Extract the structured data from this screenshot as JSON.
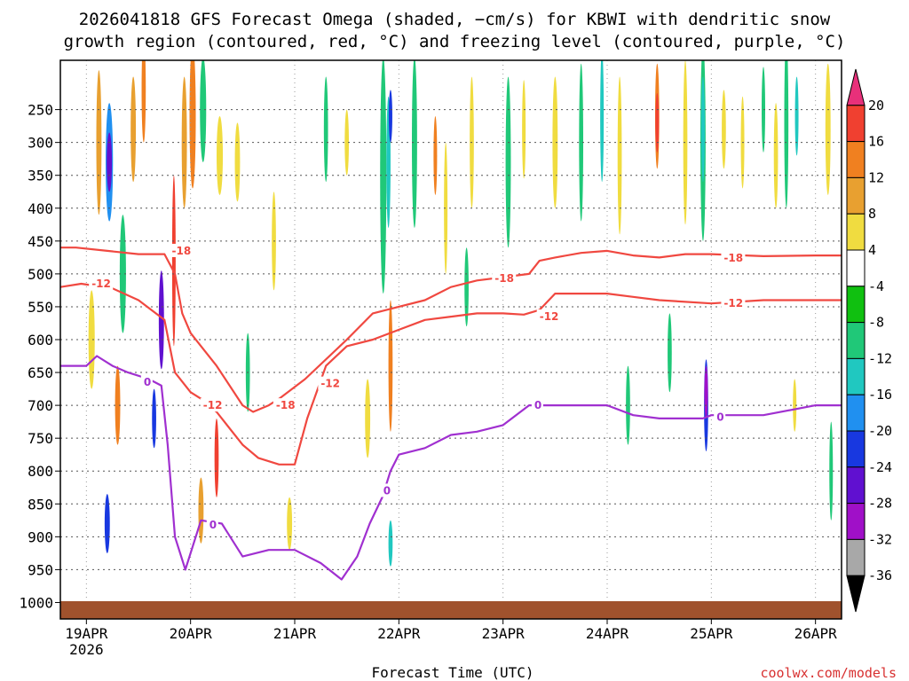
{
  "chart_data": {
    "type": "heatmap",
    "title_line1": "2026041818 GFS Forecast Omega (shaded, −cm/s) for KBWI with dendritic snow",
    "title_line2": "growth region (contoured, red, °C) and freezing level (contoured, purple, °C)",
    "xlabel": "Forecast Time (UTC)",
    "ylabel": "",
    "credit": "coolwx.com/models",
    "x_range_days": [
      18.75,
      26.25
    ],
    "y_range_hpa": [
      1025,
      175
    ],
    "x_ticks": [
      {
        "day": 19,
        "label": "19APR",
        "sub": "2026"
      },
      {
        "day": 20,
        "label": "20APR",
        "sub": ""
      },
      {
        "day": 21,
        "label": "21APR",
        "sub": ""
      },
      {
        "day": 22,
        "label": "22APR",
        "sub": ""
      },
      {
        "day": 23,
        "label": "23APR",
        "sub": ""
      },
      {
        "day": 24,
        "label": "24APR",
        "sub": ""
      },
      {
        "day": 25,
        "label": "25APR",
        "sub": ""
      },
      {
        "day": 26,
        "label": "26APR",
        "sub": ""
      }
    ],
    "y_ticks": [
      {
        "p": 250,
        "label": "250"
      },
      {
        "p": 300,
        "label": "300"
      },
      {
        "p": 350,
        "label": "350"
      },
      {
        "p": 400,
        "label": "400"
      },
      {
        "p": 450,
        "label": "450"
      },
      {
        "p": 500,
        "label": "500"
      },
      {
        "p": 550,
        "label": "550"
      },
      {
        "p": 600,
        "label": "600"
      },
      {
        "p": 650,
        "label": "650"
      },
      {
        "p": 700,
        "label": "700"
      },
      {
        "p": 750,
        "label": "750"
      },
      {
        "p": 800,
        "label": "800"
      },
      {
        "p": 850,
        "label": "850"
      },
      {
        "p": 900,
        "label": "900"
      },
      {
        "p": 950,
        "label": "950"
      },
      {
        "p": 1000,
        "label": "1000"
      }
    ],
    "colorbar": {
      "bands": [
        {
          "lo": 20,
          "hi": 99,
          "color": "#e8307a"
        },
        {
          "lo": 16,
          "hi": 20,
          "color": "#f04030"
        },
        {
          "lo": 12,
          "hi": 16,
          "color": "#f08020"
        },
        {
          "lo": 8,
          "hi": 12,
          "color": "#e8a030"
        },
        {
          "lo": 4,
          "hi": 8,
          "color": "#f0dc40"
        },
        {
          "lo": -4,
          "hi": 4,
          "color": "#ffffff"
        },
        {
          "lo": -8,
          "hi": -4,
          "color": "#10c010"
        },
        {
          "lo": -12,
          "hi": -8,
          "color": "#20c878"
        },
        {
          "lo": -16,
          "hi": -12,
          "color": "#20c8c0"
        },
        {
          "lo": -20,
          "hi": -16,
          "color": "#2090f0"
        },
        {
          "lo": -24,
          "hi": -20,
          "color": "#1838e0"
        },
        {
          "lo": -28,
          "hi": -24,
          "color": "#6010d0"
        },
        {
          "lo": -32,
          "hi": -28,
          "color": "#a010c8"
        },
        {
          "lo": -36,
          "hi": -32,
          "color": "#a8a8a8"
        },
        {
          "lo": -99,
          "hi": -36,
          "color": "#000000"
        }
      ],
      "tick_labels": [
        "20",
        "16",
        "12",
        "8",
        "4",
        "-4",
        "-8",
        "-12",
        "-16",
        "-20",
        "-24",
        "-28",
        "-32",
        "-36"
      ]
    },
    "omega_patches": [
      {
        "day": 19.22,
        "p": 330,
        "wd": 0.07,
        "hp": 180,
        "value": -20
      },
      {
        "day": 19.22,
        "p": 330,
        "wd": 0.05,
        "hp": 90,
        "value": -26
      },
      {
        "day": 19.12,
        "p": 300,
        "wd": 0.05,
        "hp": 220,
        "value": 10
      },
      {
        "day": 19.45,
        "p": 280,
        "wd": 0.05,
        "hp": 160,
        "value": 10
      },
      {
        "day": 19.35,
        "p": 500,
        "wd": 0.06,
        "hp": 180,
        "value": -10
      },
      {
        "day": 19.05,
        "p": 600,
        "wd": 0.06,
        "hp": 150,
        "value": 6
      },
      {
        "day": 19.3,
        "p": 700,
        "wd": 0.05,
        "hp": 120,
        "value": 14
      },
      {
        "day": 19.2,
        "p": 880,
        "wd": 0.05,
        "hp": 90,
        "value": -22
      },
      {
        "day": 19.55,
        "p": 220,
        "wd": 0.04,
        "hp": 160,
        "value": 14
      },
      {
        "day": 19.72,
        "p": 560,
        "wd": 0.03,
        "hp": 110,
        "value": -40
      },
      {
        "day": 19.72,
        "p": 570,
        "wd": 0.05,
        "hp": 150,
        "value": -26
      },
      {
        "day": 19.65,
        "p": 720,
        "wd": 0.04,
        "hp": 90,
        "value": -24
      },
      {
        "day": 19.84,
        "p": 480,
        "wd": 0.03,
        "hp": 260,
        "value": 18
      },
      {
        "day": 19.94,
        "p": 300,
        "wd": 0.05,
        "hp": 200,
        "value": 8
      },
      {
        "day": 20.02,
        "p": 260,
        "wd": 0.06,
        "hp": 220,
        "value": 12
      },
      {
        "day": 20.12,
        "p": 250,
        "wd": 0.06,
        "hp": 160,
        "value": -10
      },
      {
        "day": 20.28,
        "p": 320,
        "wd": 0.06,
        "hp": 120,
        "value": 6
      },
      {
        "day": 20.25,
        "p": 780,
        "wd": 0.04,
        "hp": 120,
        "value": 16
      },
      {
        "day": 20.1,
        "p": 860,
        "wd": 0.05,
        "hp": 100,
        "value": 10
      },
      {
        "day": 20.45,
        "p": 330,
        "wd": 0.05,
        "hp": 120,
        "value": 6
      },
      {
        "day": 20.55,
        "p": 650,
        "wd": 0.04,
        "hp": 120,
        "value": -10
      },
      {
        "day": 20.8,
        "p": 450,
        "wd": 0.04,
        "hp": 150,
        "value": 6
      },
      {
        "day": 20.95,
        "p": 880,
        "wd": 0.05,
        "hp": 80,
        "value": 6
      },
      {
        "day": 21.3,
        "p": 280,
        "wd": 0.04,
        "hp": 160,
        "value": -10
      },
      {
        "day": 21.5,
        "p": 300,
        "wd": 0.04,
        "hp": 100,
        "value": 6
      },
      {
        "day": 21.85,
        "p": 350,
        "wd": 0.06,
        "hp": 360,
        "value": -10
      },
      {
        "day": 21.9,
        "p": 330,
        "wd": 0.04,
        "hp": 200,
        "value": -16
      },
      {
        "day": 21.92,
        "p": 260,
        "wd": 0.03,
        "hp": 80,
        "value": -22
      },
      {
        "day": 21.92,
        "p": 640,
        "wd": 0.04,
        "hp": 200,
        "value": 12
      },
      {
        "day": 21.7,
        "p": 720,
        "wd": 0.05,
        "hp": 120,
        "value": 6
      },
      {
        "day": 21.92,
        "p": 910,
        "wd": 0.04,
        "hp": 70,
        "value": -14
      },
      {
        "day": 22.15,
        "p": 300,
        "wd": 0.05,
        "hp": 260,
        "value": -10
      },
      {
        "day": 22.35,
        "p": 320,
        "wd": 0.03,
        "hp": 120,
        "value": 12
      },
      {
        "day": 22.45,
        "p": 400,
        "wd": 0.03,
        "hp": 200,
        "value": 6
      },
      {
        "day": 22.65,
        "p": 520,
        "wd": 0.04,
        "hp": 120,
        "value": -10
      },
      {
        "day": 22.7,
        "p": 300,
        "wd": 0.04,
        "hp": 200,
        "value": 6
      },
      {
        "day": 23.05,
        "p": 330,
        "wd": 0.05,
        "hp": 260,
        "value": -10
      },
      {
        "day": 23.2,
        "p": 280,
        "wd": 0.03,
        "hp": 150,
        "value": 6
      },
      {
        "day": 23.5,
        "p": 300,
        "wd": 0.05,
        "hp": 200,
        "value": 6
      },
      {
        "day": 23.75,
        "p": 300,
        "wd": 0.04,
        "hp": 240,
        "value": -10
      },
      {
        "day": 23.95,
        "p": 260,
        "wd": 0.03,
        "hp": 200,
        "value": -14
      },
      {
        "day": 24.12,
        "p": 320,
        "wd": 0.04,
        "hp": 240,
        "value": 6
      },
      {
        "day": 24.48,
        "p": 260,
        "wd": 0.04,
        "hp": 160,
        "value": 14
      },
      {
        "day": 24.48,
        "p": 270,
        "wd": 0.02,
        "hp": 90,
        "value": 18
      },
      {
        "day": 24.2,
        "p": 700,
        "wd": 0.04,
        "hp": 120,
        "value": -10
      },
      {
        "day": 24.6,
        "p": 620,
        "wd": 0.04,
        "hp": 120,
        "value": -10
      },
      {
        "day": 24.75,
        "p": 300,
        "wd": 0.04,
        "hp": 250,
        "value": 6
      },
      {
        "day": 24.92,
        "p": 300,
        "wd": 0.05,
        "hp": 300,
        "value": -12
      },
      {
        "day": 24.92,
        "p": 280,
        "wd": 0.03,
        "hp": 160,
        "value": -16
      },
      {
        "day": 24.95,
        "p": 700,
        "wd": 0.04,
        "hp": 140,
        "value": -22
      },
      {
        "day": 24.95,
        "p": 680,
        "wd": 0.02,
        "hp": 80,
        "value": -30
      },
      {
        "day": 25.12,
        "p": 280,
        "wd": 0.04,
        "hp": 120,
        "value": 6
      },
      {
        "day": 25.3,
        "p": 300,
        "wd": 0.03,
        "hp": 140,
        "value": 6
      },
      {
        "day": 25.5,
        "p": 250,
        "wd": 0.03,
        "hp": 130,
        "value": -10
      },
      {
        "day": 25.62,
        "p": 320,
        "wd": 0.04,
        "hp": 160,
        "value": 6
      },
      {
        "day": 25.72,
        "p": 270,
        "wd": 0.04,
        "hp": 260,
        "value": -10
      },
      {
        "day": 25.82,
        "p": 260,
        "wd": 0.03,
        "hp": 120,
        "value": -14
      },
      {
        "day": 26.12,
        "p": 280,
        "wd": 0.05,
        "hp": 200,
        "value": 6
      },
      {
        "day": 26.15,
        "p": 800,
        "wd": 0.03,
        "hp": 150,
        "value": -10
      },
      {
        "day": 25.8,
        "p": 700,
        "wd": 0.03,
        "hp": 80,
        "value": 6
      }
    ],
    "contours": [
      {
        "name": "-18C",
        "color": "#f04840",
        "label": "-18",
        "days": [
          18.75,
          18.9,
          19.2,
          19.5,
          19.75,
          19.85,
          19.92,
          20.0,
          20.25,
          20.5,
          20.6,
          20.75,
          20.85,
          21.1,
          21.5,
          21.75,
          22.0,
          22.25,
          22.5,
          22.75,
          23.0,
          23.25,
          23.35,
          23.5,
          23.75,
          24.0,
          24.25,
          24.5,
          24.75,
          25.0,
          25.5,
          26.0,
          26.25
        ],
        "p": [
          460,
          460,
          465,
          470,
          470,
          500,
          560,
          590,
          640,
          700,
          710,
          700,
          690,
          660,
          600,
          560,
          550,
          540,
          520,
          510,
          505,
          500,
          480,
          475,
          468,
          465,
          472,
          475,
          470,
          470,
          473,
          472,
          472
        ],
        "labels": [
          {
            "day": 19.82,
            "p": 465
          },
          {
            "day": 20.82,
            "p": 700
          },
          {
            "day": 22.92,
            "p": 507
          },
          {
            "day": 25.12,
            "p": 476
          }
        ]
      },
      {
        "name": "-12C",
        "color": "#f04840",
        "label": "-12",
        "days": [
          18.75,
          18.95,
          19.25,
          19.5,
          19.75,
          19.85,
          20.0,
          20.1,
          20.25,
          20.4,
          20.5,
          20.65,
          20.85,
          21.0,
          21.12,
          21.3,
          21.5,
          21.75,
          22.0,
          22.25,
          22.5,
          22.75,
          23.0,
          23.2,
          23.35,
          23.5,
          24.0,
          24.25,
          24.5,
          25.0,
          25.5,
          26.0,
          26.25
        ],
        "p": [
          520,
          515,
          522,
          540,
          570,
          650,
          680,
          690,
          710,
          740,
          760,
          780,
          790,
          790,
          720,
          640,
          610,
          600,
          585,
          570,
          565,
          560,
          560,
          562,
          555,
          530,
          530,
          535,
          540,
          545,
          540,
          540,
          540
        ],
        "labels": [
          {
            "day": 19.05,
            "p": 515
          },
          {
            "day": 20.12,
            "p": 700
          },
          {
            "day": 21.25,
            "p": 667
          },
          {
            "day": 23.35,
            "p": 565
          },
          {
            "day": 25.12,
            "p": 545
          }
        ]
      },
      {
        "name": "0C",
        "color": "#a030d0",
        "label": "0",
        "days": [
          18.75,
          18.85,
          19.0,
          19.1,
          19.25,
          19.4,
          19.6,
          19.72,
          19.78,
          19.85,
          19.95,
          20.1,
          20.3,
          20.5,
          20.75,
          21.0,
          21.25,
          21.45,
          21.6,
          21.72,
          21.84,
          21.92,
          22.0,
          22.25,
          22.5,
          22.75,
          23.0,
          23.25,
          23.5,
          24.0,
          24.25,
          24.5,
          24.75,
          24.92,
          25.0,
          25.5,
          26.0,
          26.25
        ],
        "p": [
          640,
          640,
          640,
          625,
          640,
          650,
          660,
          670,
          760,
          900,
          950,
          875,
          880,
          930,
          920,
          920,
          940,
          965,
          930,
          880,
          840,
          800,
          775,
          765,
          745,
          740,
          730,
          700,
          700,
          700,
          715,
          720,
          720,
          720,
          715,
          715,
          700,
          700
        ],
        "labels": [
          {
            "day": 19.55,
            "p": 665
          },
          {
            "day": 20.18,
            "p": 882
          },
          {
            "day": 21.85,
            "p": 830
          },
          {
            "day": 23.3,
            "p": 700
          },
          {
            "day": 25.05,
            "p": 718
          }
        ]
      }
    ]
  }
}
